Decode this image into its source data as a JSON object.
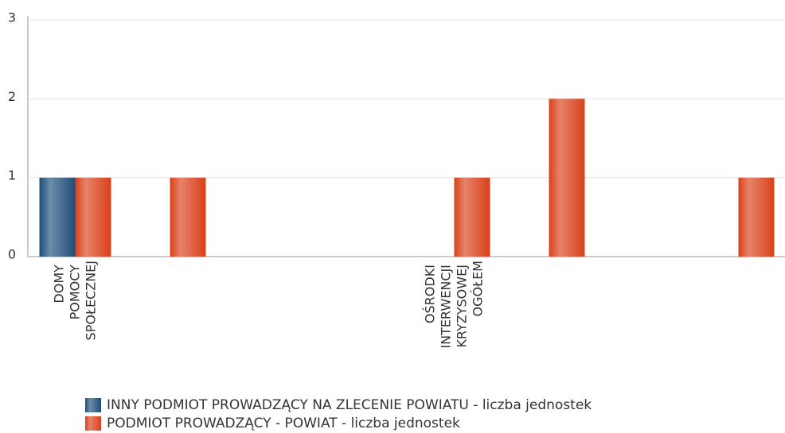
{
  "chart_data": {
    "type": "bar",
    "categories": [
      "DOMY POMOCY SPOŁECZNEJ",
      null,
      null,
      null,
      "OŚRODKI INTERWENCJI KRYZYSOWEJ OGÓŁEM",
      null,
      null,
      null
    ],
    "series": [
      {
        "name": "INNY PODMIOT PROWADZĄCY NA ZLECENIE POWIATU - liczba jednostek",
        "color": "#1f4e79",
        "values": [
          1,
          0,
          0,
          0,
          0,
          0,
          0,
          0
        ]
      },
      {
        "name": "PODMIOT PROWADZĄCY - POWIAT - liczba jednostek",
        "color": "#d9401a",
        "values": [
          1,
          1,
          0,
          0,
          1,
          2,
          0,
          1
        ]
      }
    ],
    "ylim": [
      0,
      3
    ],
    "yticks": [
      0,
      1,
      2,
      3
    ],
    "grid": true
  }
}
